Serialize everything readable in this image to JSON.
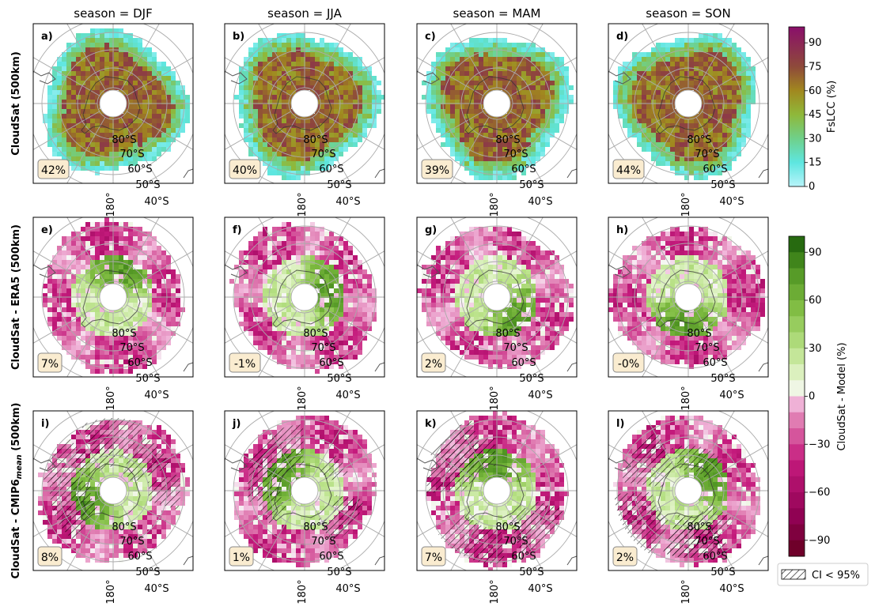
{
  "chart_data": {
    "type": "heatmap",
    "projection": "south polar stereographic",
    "columns": [
      "season = DJF",
      "season = JJA",
      "season = MAM",
      "season = SON"
    ],
    "rows": [
      {
        "label": "CloudSat (500km)",
        "colormap": "fslcc"
      },
      {
        "label": "CloudSat - ERA5 (500km)",
        "colormap": "diff"
      },
      {
        "label": "CloudSat - CMIP6_mean (500km)",
        "colormap": "diff"
      }
    ],
    "panels": [
      {
        "letter": "a)",
        "value": "42%",
        "pattern": "abs",
        "seed": 1
      },
      {
        "letter": "b)",
        "value": "40%",
        "pattern": "abs",
        "seed": 2
      },
      {
        "letter": "c)",
        "value": "39%",
        "pattern": "abs",
        "seed": 3
      },
      {
        "letter": "d)",
        "value": "44%",
        "pattern": "abs",
        "seed": 4
      },
      {
        "letter": "e)",
        "value": "7%",
        "pattern": "diff",
        "seed": 5
      },
      {
        "letter": "f)",
        "value": "-1%",
        "pattern": "diff",
        "seed": 6
      },
      {
        "letter": "g)",
        "value": "2%",
        "pattern": "diff",
        "seed": 7
      },
      {
        "letter": "h)",
        "value": "-0%",
        "pattern": "diff",
        "seed": 8
      },
      {
        "letter": "i)",
        "value": "8%",
        "pattern": "diffh",
        "seed": 9
      },
      {
        "letter": "j)",
        "value": "1%",
        "pattern": "diffh",
        "seed": 10
      },
      {
        "letter": "k)",
        "value": "7%",
        "pattern": "diffh",
        "seed": 11
      },
      {
        "letter": "l)",
        "value": "2%",
        "pattern": "diffh",
        "seed": 12
      }
    ],
    "latitude_labels": [
      "80°S",
      "70°S",
      "60°S",
      "50°S",
      "40°S"
    ],
    "longitude_label": "180°",
    "colorbars": [
      {
        "label": "FsLCC (%)",
        "ticks": [
          "0",
          "15",
          "30",
          "45",
          "60",
          "75",
          "90"
        ],
        "range": [
          0,
          100
        ]
      },
      {
        "label": "CloudSat - Model (%)",
        "ticks": [
          "−90",
          "−60",
          "−30",
          "0",
          "30",
          "60",
          "90"
        ],
        "range": [
          -100,
          100
        ]
      }
    ],
    "legend": {
      "label": "CI < 95%"
    }
  }
}
